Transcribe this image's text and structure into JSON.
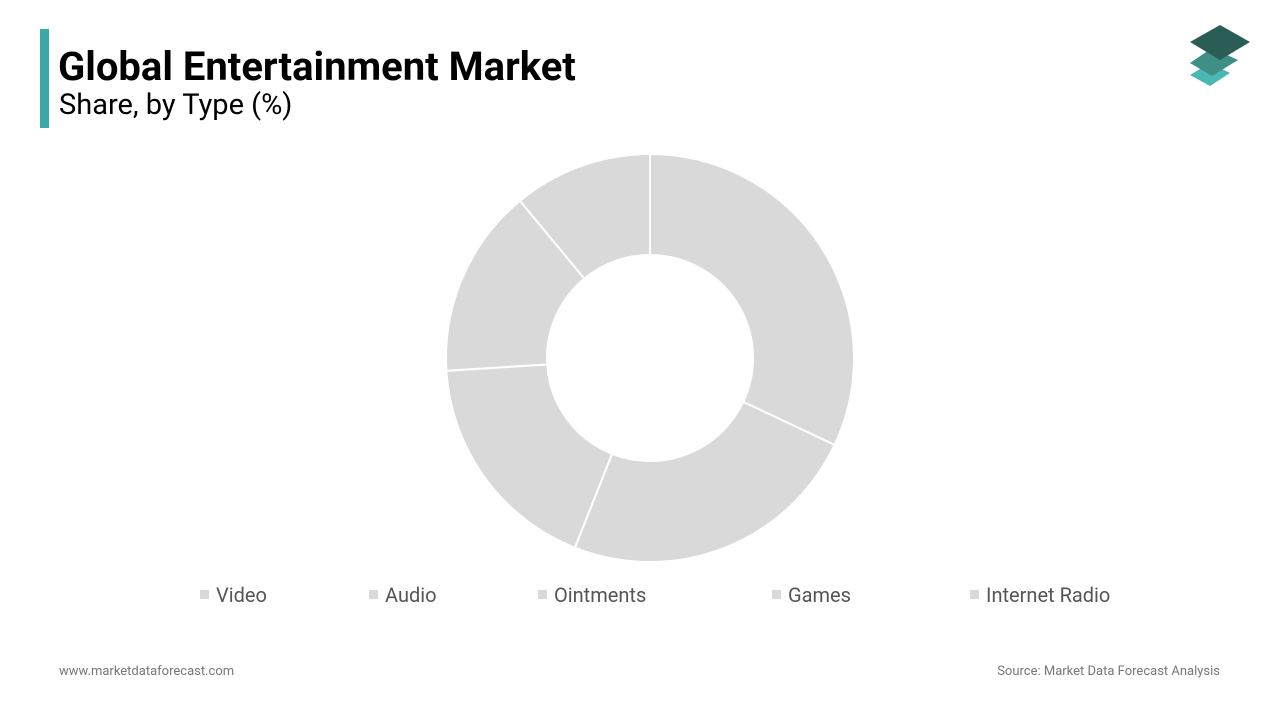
{
  "chart_data": {
    "type": "donut",
    "title": "Global Entertainment Market",
    "subtitle": "Share, by Type (%)",
    "categories": [
      "Video",
      "Audio",
      "Ointments",
      "Games",
      "Internet Radio"
    ],
    "values": [
      32,
      24,
      18,
      15,
      11
    ],
    "color": "#d9d9d9"
  },
  "footer": {
    "website": "www.marketdataforecast.com",
    "source": "Source: Market Data Forecast Analysis"
  }
}
